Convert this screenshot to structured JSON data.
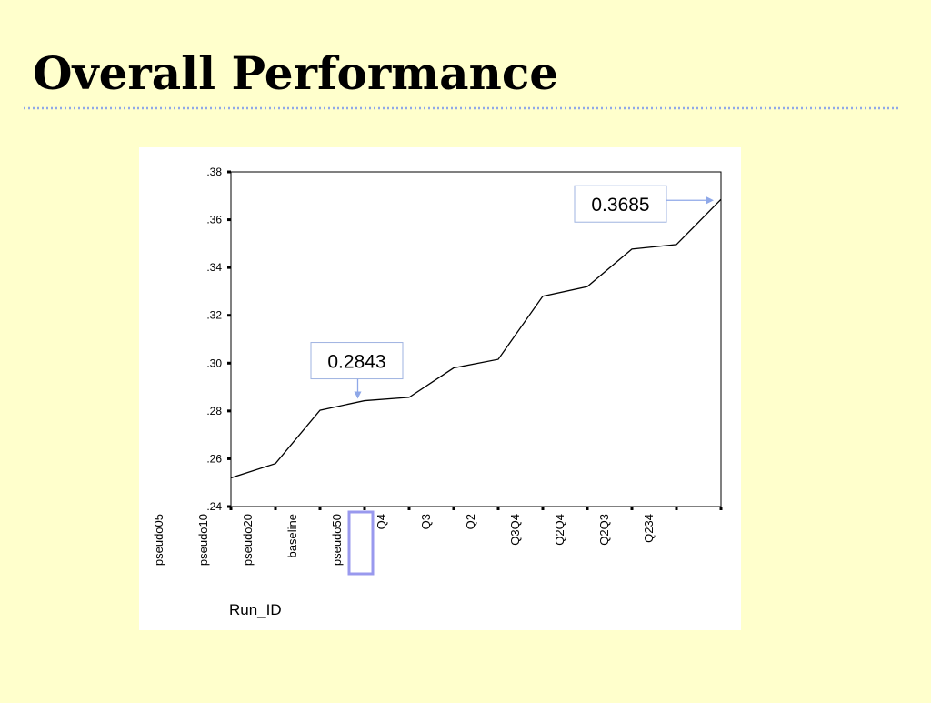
{
  "title": "Overall Performance",
  "chart_data": {
    "type": "line",
    "x_label": "Run_ID",
    "categories": [
      "pseudo05",
      "pseudo10",
      "pseudo20",
      "baseline",
      "pseudo50",
      "Q4",
      "Q3",
      "Q2",
      "Q3Q4",
      "Q2Q4",
      "Q2Q3",
      "Q234"
    ],
    "values": [
      0.252,
      0.258,
      0.2803,
      0.2843,
      0.2857,
      0.298,
      0.3016,
      0.328,
      0.332,
      0.3477,
      0.3496,
      0.3685
    ],
    "value_labels": [
      null,
      null,
      null,
      "0.2843",
      null,
      null,
      null,
      null,
      null,
      null,
      null,
      "0.3685"
    ],
    "color": "#000000",
    "ylim": [
      0.24,
      0.38
    ],
    "yticks": [
      {
        "value": 0.24,
        "label": ".24"
      },
      {
        "value": 0.26,
        "label": ".26"
      },
      {
        "value": 0.28,
        "label": ".28"
      },
      {
        "value": 0.3,
        "label": ".30"
      },
      {
        "value": 0.32,
        "label": ".32"
      },
      {
        "value": 0.34,
        "label": ".34"
      },
      {
        "value": 0.36,
        "label": ".36"
      },
      {
        "value": 0.38,
        "label": ".38"
      }
    ]
  }
}
